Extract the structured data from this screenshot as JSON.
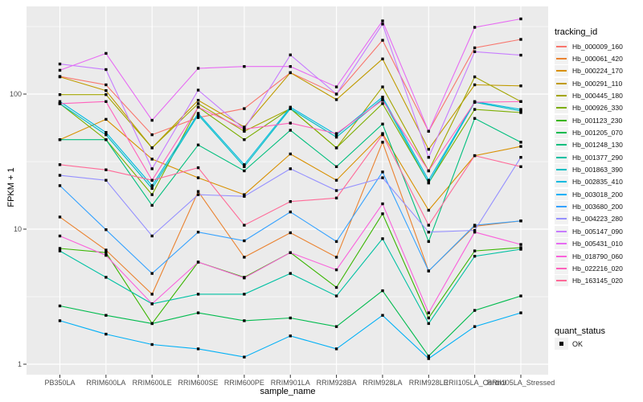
{
  "chart_data": {
    "type": "line",
    "title": "",
    "xlabel": "sample_name",
    "ylabel": "FPKM + 1",
    "y_scale": "log10",
    "y_ticks": [
      1,
      10,
      100
    ],
    "y_minor_ticks": [
      3.16,
      31.6,
      316
    ],
    "ylim": [
      0.85,
      450
    ],
    "grid": "on",
    "panel_bg": "#ebebeb",
    "grid_color": "#ffffff",
    "tick_label_color": "#4d4d4d",
    "marker": "black-square",
    "legend_title": "tracking_id",
    "legend_position": "right",
    "status_legend": {
      "title": "quant_status",
      "items": [
        "OK"
      ]
    },
    "categories": [
      "PB350LA",
      "RRIM600LA",
      "RRIM600LE",
      "RRIM600SE",
      "RRIM600PE",
      "RRIM901LA",
      "RRIM928BA",
      "RRIM928LA",
      "RRIM928LE",
      "RRII105LA_Control",
      "RRII105LA_Stressed"
    ],
    "series": [
      {
        "name": "Hb_000009_160",
        "color": "#F8766D",
        "values": [
          135,
          117,
          50,
          67,
          78,
          144,
          100,
          250,
          53,
          220,
          254
        ]
      },
      {
        "name": "Hb_000061_420",
        "color": "#EA8331",
        "values": [
          12.3,
          7,
          3.3,
          19,
          6.2,
          9.4,
          6.2,
          44,
          4.9,
          10.5,
          11.5
        ]
      },
      {
        "name": "Hb_000224_170",
        "color": "#D89000",
        "values": [
          46,
          65,
          33,
          24,
          18,
          36,
          23,
          51,
          13.8,
          35,
          41
        ]
      },
      {
        "name": "Hb_000291_110",
        "color": "#C09B00",
        "values": [
          134,
          106,
          40,
          90,
          57,
          144,
          91,
          182,
          39,
          117,
          115
        ]
      },
      {
        "name": "Hb_000445_180",
        "color": "#A3A500",
        "values": [
          99,
          99,
          40,
          85,
          53,
          78,
          40,
          113,
          27,
          134,
          88
        ]
      },
      {
        "name": "Hb_000926_330",
        "color": "#7CAE00",
        "values": [
          85,
          46,
          18,
          80,
          46,
          78,
          40,
          85,
          22,
          77,
          73
        ]
      },
      {
        "name": "Hb_001123_230",
        "color": "#39B600",
        "values": [
          7.2,
          6.7,
          2,
          5.7,
          4.4,
          6.7,
          3.7,
          13,
          2.2,
          6.9,
          7.3
        ]
      },
      {
        "name": "Hb_001205_070",
        "color": "#00BB4E",
        "values": [
          2.7,
          2.3,
          2,
          2.4,
          2.1,
          2.2,
          1.9,
          3.5,
          1.15,
          2.5,
          3.2
        ]
      },
      {
        "name": "Hb_001248_130",
        "color": "#00BF7D",
        "values": [
          46,
          46,
          15,
          42,
          27,
          54,
          29,
          60,
          8.1,
          66,
          44
        ]
      },
      {
        "name": "Hb_001377_290",
        "color": "#00C1A3",
        "values": [
          6.9,
          4.4,
          2.8,
          3.3,
          3.3,
          4.7,
          3.2,
          8.5,
          2,
          6.3,
          7.1
        ]
      },
      {
        "name": "Hb_001863_390",
        "color": "#00BFC4",
        "values": [
          85,
          50,
          20,
          70,
          29,
          78,
          48,
          92,
          22,
          87,
          75
        ]
      },
      {
        "name": "Hb_002835_410",
        "color": "#00BAE0",
        "values": [
          88,
          52,
          21,
          72,
          30,
          80,
          50,
          95,
          23,
          88,
          77
        ]
      },
      {
        "name": "Hb_003018_200",
        "color": "#00B0F6",
        "values": [
          2.1,
          1.67,
          1.4,
          1.3,
          1.13,
          1.62,
          1.3,
          2.3,
          1.1,
          1.9,
          2.4
        ]
      },
      {
        "name": "Hb_003680_200",
        "color": "#35A2FF",
        "values": [
          21,
          9.9,
          4.7,
          9.5,
          8.2,
          13.4,
          8.1,
          26.5,
          4.9,
          10.7,
          11.5
        ]
      },
      {
        "name": "Hb_004223_280",
        "color": "#9590FF",
        "values": [
          25,
          23,
          8.9,
          18,
          17.5,
          28,
          19.3,
          24,
          9.5,
          9.8,
          34
        ]
      },
      {
        "name": "Hb_005147_090",
        "color": "#C77CFF",
        "values": [
          167,
          152,
          28,
          107,
          55,
          195,
          100,
          330,
          34,
          206,
          194
        ]
      },
      {
        "name": "Hb_005431_010",
        "color": "#E76BF3",
        "values": [
          150,
          200,
          64,
          155,
          160,
          160,
          113,
          348,
          53,
          312,
          360
        ]
      },
      {
        "name": "Hb_018790_060",
        "color": "#FA62DB",
        "values": [
          8.9,
          6.4,
          2.8,
          5.7,
          4.35,
          6.7,
          5,
          15.4,
          2.4,
          9.5,
          7.7
        ]
      },
      {
        "name": "Hb_022216_020",
        "color": "#FF62BC",
        "values": [
          85,
          88,
          23,
          80,
          55,
          61,
          51,
          90,
          27,
          87,
          88
        ]
      },
      {
        "name": "Hb_163145_020",
        "color": "#FF6A98",
        "values": [
          30,
          27.5,
          23,
          28.5,
          10.7,
          16,
          17,
          50,
          10.7,
          35,
          29
        ]
      }
    ]
  }
}
